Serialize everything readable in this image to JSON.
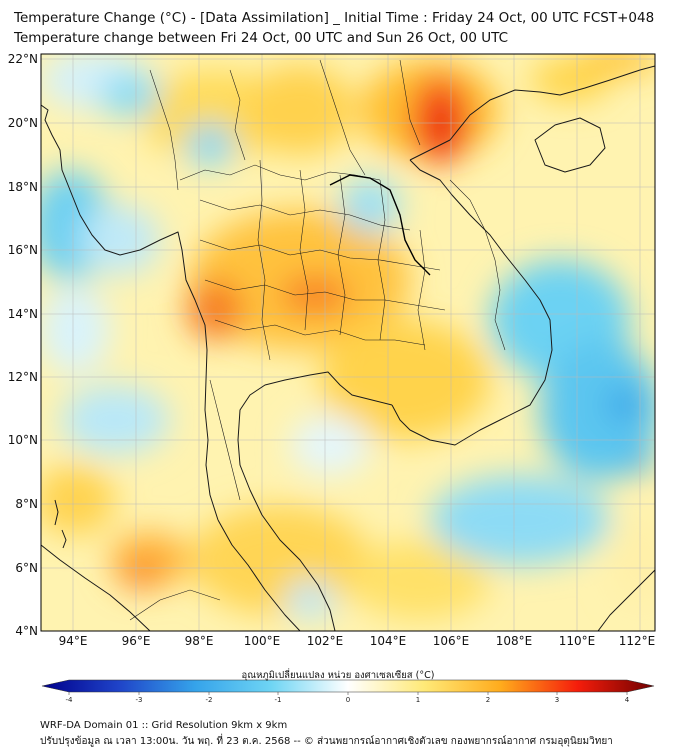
{
  "header": {
    "title_line1": "Temperature Change (°C) - [Data Assimilation] _ Initial Time : Friday 24 Oct, 00 UTC FCST+048",
    "title_line2": "Temperature change between Fri 24 Oct, 00 UTC and Sun 26 Oct, 00 UTC"
  },
  "map": {
    "lat_labels": [
      "22°N",
      "20°N",
      "18°N",
      "16°N",
      "14°N",
      "12°N",
      "10°N",
      "8°N",
      "6°N",
      "4°N"
    ],
    "lon_labels": [
      "94°E",
      "96°E",
      "98°E",
      "100°E",
      "102°E",
      "104°E",
      "106°E",
      "108°E",
      "110°E",
      "112°E"
    ]
  },
  "colorbar": {
    "title": "อุณหภูมิเปลี่ยนแปลง หน่วย องศาเซลเซียส (°C)",
    "tick_labels": [
      "-4",
      "-3",
      "-2",
      "-1",
      "0",
      "1",
      "2",
      "3",
      "4"
    ],
    "min": -4,
    "max": 4
  },
  "footer": {
    "line1": "WRF-DA Domain 01 :: Grid Resolution 9km x 9km",
    "line2": "ปรับปรุงข้อมูล ณ เวลา 13:00น. วัน พฤ. ที่ 23 ต.ค. 2568 -- © ส่วนพยากรณ์อากาศเชิงตัวเลข กองพยากรณ์อากาศ กรมอุตุนิยมวิทยา"
  }
}
